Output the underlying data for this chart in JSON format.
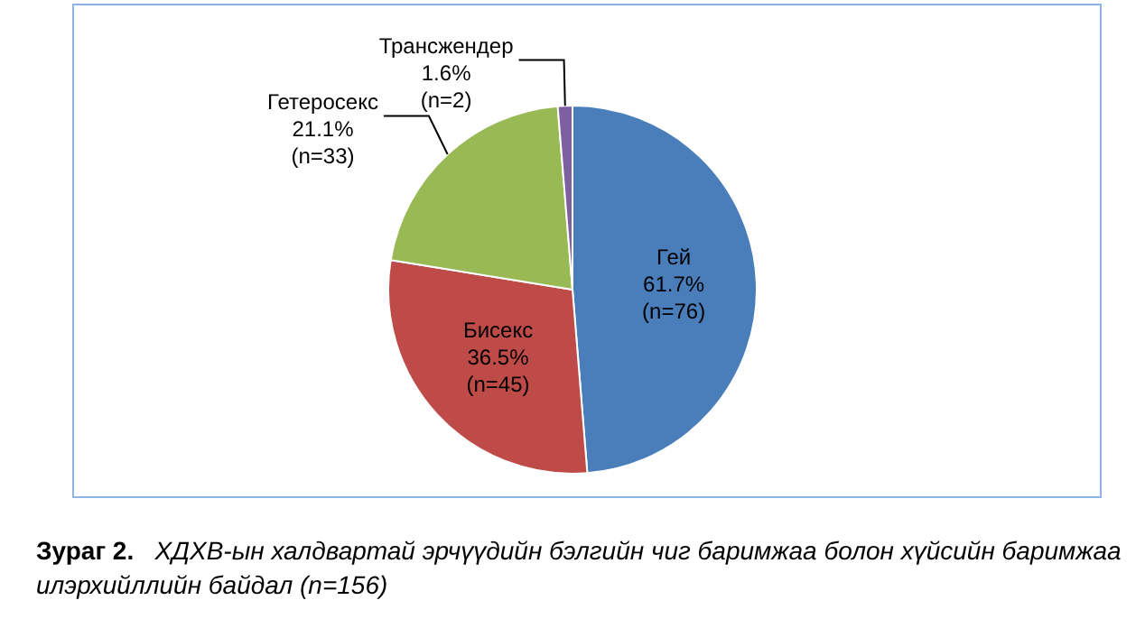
{
  "chart_data": {
    "type": "pie",
    "categories": [
      "Гей",
      "Бисекс",
      "Гетеросекс",
      "Трансжендер"
    ],
    "values": [
      76,
      45,
      33,
      2
    ],
    "colors": [
      "#4a7ebb",
      "#be4b48",
      "#98b954",
      "#7d60a0"
    ],
    "value_labels": [
      "61.7%\n(n=76)",
      "36.5%\n(n=45)",
      "21.1%\n(n=33)",
      "1.6%\n(n=2)"
    ],
    "legend": false,
    "annotations": [
      "Зураг 2.",
      "ХДХВ-ын халдвартай эрчүүдийн бэлгийн чиг баримжаа болон хүйсийн баримжаа илэрхийллийн байдал (n=156)"
    ]
  }
}
